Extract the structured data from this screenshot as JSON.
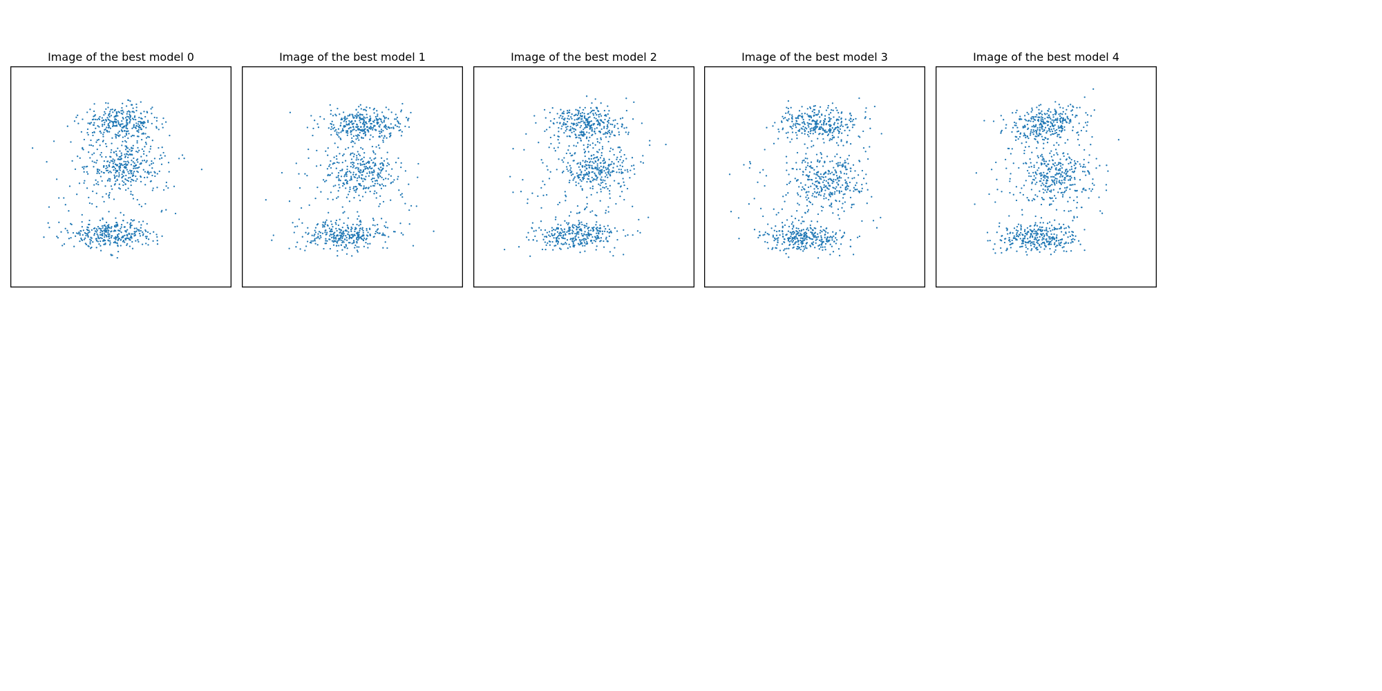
{
  "chart_data": [
    {
      "type": "scatter",
      "title": "Image of the best model 0",
      "axes_visible": false,
      "grid": false,
      "xlim": [
        -3,
        3
      ],
      "ylim": [
        -3,
        3
      ],
      "color": "#1f77b4",
      "points": {
        "count": 1000,
        "x_extent": [
          -2.45,
          2.4
        ],
        "y_extent": [
          -2.25,
          2.1
        ],
        "description_clusters": [
          {
            "center": [
              0.0,
              1.45
            ],
            "spread": [
              0.95,
              0.45
            ],
            "share": 0.3
          },
          {
            "center": [
              0.1,
              0.3
            ],
            "spread": [
              0.85,
              0.55
            ],
            "share": 0.25
          },
          {
            "center": [
              -0.25,
              -1.55
            ],
            "spread": [
              1.05,
              0.35
            ],
            "share": 0.3
          },
          {
            "center": [
              0.0,
              0.0
            ],
            "spread": [
              1.6,
              1.6
            ],
            "share": 0.15
          }
        ]
      }
    },
    {
      "type": "scatter",
      "title": "Image of the best model 1",
      "axes_visible": false,
      "grid": false,
      "xlim": [
        -3,
        3
      ],
      "ylim": [
        -3,
        3
      ],
      "color": "#1f77b4",
      "points": {
        "count": 1000,
        "x_extent": [
          -2.6,
          2.35
        ],
        "y_extent": [
          -2.3,
          2.1
        ],
        "description_clusters": [
          {
            "center": [
              0.3,
              1.45
            ],
            "spread": [
              0.95,
              0.4
            ],
            "share": 0.32
          },
          {
            "center": [
              0.3,
              0.1
            ],
            "spread": [
              0.85,
              0.6
            ],
            "share": 0.25
          },
          {
            "center": [
              -0.2,
              -1.6
            ],
            "spread": [
              1.05,
              0.35
            ],
            "share": 0.3
          },
          {
            "center": [
              0.0,
              0.0
            ],
            "spread": [
              1.6,
              1.6
            ],
            "share": 0.13
          }
        ]
      }
    },
    {
      "type": "scatter",
      "title": "Image of the best model 2",
      "axes_visible": false,
      "grid": false,
      "xlim": [
        -3,
        3
      ],
      "ylim": [
        -3,
        3
      ],
      "color": "#1f77b4",
      "points": {
        "count": 1000,
        "x_extent": [
          -2.5,
          2.5
        ],
        "y_extent": [
          -2.3,
          2.2
        ],
        "description_clusters": [
          {
            "center": [
              0.1,
              1.45
            ],
            "spread": [
              0.95,
              0.45
            ],
            "share": 0.3
          },
          {
            "center": [
              0.3,
              0.2
            ],
            "spread": [
              0.9,
              0.6
            ],
            "share": 0.25
          },
          {
            "center": [
              -0.2,
              -1.6
            ],
            "spread": [
              1.05,
              0.35
            ],
            "share": 0.3
          },
          {
            "center": [
              0.0,
              0.0
            ],
            "spread": [
              1.6,
              1.6
            ],
            "share": 0.15
          }
        ]
      }
    },
    {
      "type": "scatter",
      "title": "Image of the best model 3",
      "axes_visible": false,
      "grid": false,
      "xlim": [
        -3,
        3
      ],
      "ylim": [
        -3,
        3
      ],
      "color": "#1f77b4",
      "points": {
        "count": 1000,
        "x_extent": [
          -2.75,
          2.4
        ],
        "y_extent": [
          -2.4,
          2.45
        ],
        "description_clusters": [
          {
            "center": [
              0.1,
              1.45
            ],
            "spread": [
              0.95,
              0.45
            ],
            "share": 0.3
          },
          {
            "center": [
              0.35,
              -0.1
            ],
            "spread": [
              0.85,
              0.6
            ],
            "share": 0.25
          },
          {
            "center": [
              -0.3,
              -1.65
            ],
            "spread": [
              1.0,
              0.35
            ],
            "share": 0.3
          },
          {
            "center": [
              0.0,
              0.0
            ],
            "spread": [
              1.6,
              1.6
            ],
            "share": 0.15
          }
        ]
      }
    },
    {
      "type": "scatter",
      "title": "Image of the best model 4",
      "axes_visible": false,
      "grid": false,
      "xlim": [
        -3,
        3
      ],
      "ylim": [
        -3,
        3
      ],
      "color": "#1f77b4",
      "points": {
        "count": 1000,
        "x_extent": [
          -2.75,
          2.25
        ],
        "y_extent": [
          -2.25,
          2.5
        ],
        "description_clusters": [
          {
            "center": [
              0.0,
              1.45
            ],
            "spread": [
              0.9,
              0.45
            ],
            "share": 0.3
          },
          {
            "center": [
              0.3,
              0.05
            ],
            "spread": [
              0.85,
              0.6
            ],
            "share": 0.25
          },
          {
            "center": [
              -0.25,
              -1.65
            ],
            "spread": [
              1.0,
              0.35
            ],
            "share": 0.3
          },
          {
            "center": [
              0.0,
              0.0
            ],
            "spread": [
              1.6,
              1.6
            ],
            "share": 0.15
          }
        ]
      }
    }
  ]
}
